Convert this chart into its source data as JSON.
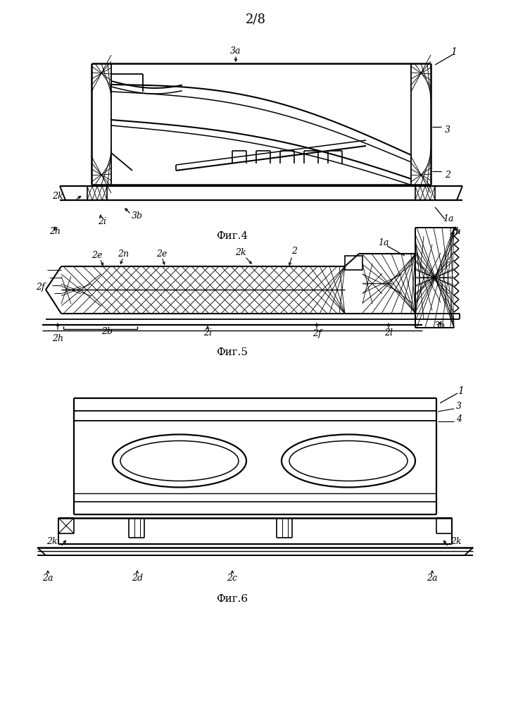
{
  "page_label": "2/8",
  "fig4_label": "Фиг.4",
  "fig5_label": "Фиг.5",
  "fig6_label": "Фиг.6",
  "bg_color": "#ffffff"
}
